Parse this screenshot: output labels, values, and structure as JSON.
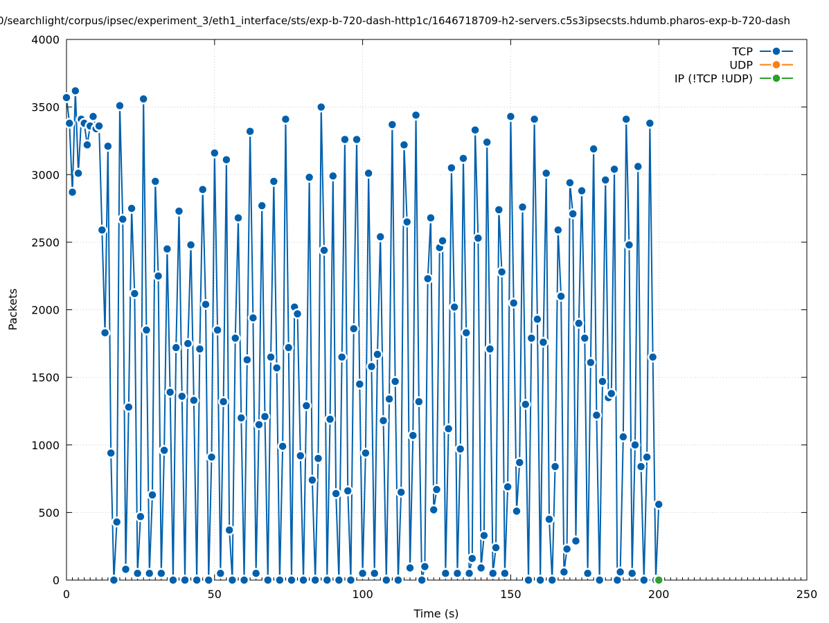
{
  "chart_data": {
    "type": "line",
    "title": "0/searchlight/corpus/ipsec/experiment_3/eth1_interface/sts/exp-b-720-dash-http1c/1646718709-h2-servers.c5s3ipsecsts.hdumb.pharos-exp-b-720-dash",
    "xlabel": "Time (s)",
    "ylabel": "Packets",
    "xlim": [
      0,
      250
    ],
    "ylim": [
      0,
      4000
    ],
    "xticks": [
      "0",
      "50",
      "100",
      "150",
      "200",
      "250"
    ],
    "yticks": [
      "0",
      "500",
      "1000",
      "1500",
      "2000",
      "2500",
      "3000",
      "3500",
      "4000"
    ],
    "grid": true,
    "legend_position": "top-right",
    "series": [
      {
        "name": "TCP",
        "color": "#0060ad",
        "points": [
          [
            0,
            3570
          ],
          [
            1,
            3380
          ],
          [
            2,
            2870
          ],
          [
            3,
            3620
          ],
          [
            4,
            3010
          ],
          [
            5,
            3410
          ],
          [
            6,
            3380
          ],
          [
            7,
            3220
          ],
          [
            8,
            3360
          ],
          [
            9,
            3430
          ],
          [
            10,
            3340
          ],
          [
            11,
            3360
          ],
          [
            12,
            2590
          ],
          [
            13,
            1830
          ],
          [
            14,
            3210
          ],
          [
            15,
            940
          ],
          [
            16,
            0
          ],
          [
            17,
            430
          ],
          [
            18,
            3510
          ],
          [
            19,
            2670
          ],
          [
            20,
            80
          ],
          [
            21,
            1280
          ],
          [
            22,
            2750
          ],
          [
            23,
            2120
          ],
          [
            24,
            50
          ],
          [
            25,
            470
          ],
          [
            26,
            3560
          ],
          [
            27,
            1850
          ],
          [
            28,
            50
          ],
          [
            29,
            630
          ],
          [
            30,
            2950
          ],
          [
            31,
            2250
          ],
          [
            32,
            50
          ],
          [
            33,
            960
          ],
          [
            34,
            2450
          ],
          [
            35,
            1390
          ],
          [
            36,
            0
          ],
          [
            37,
            1720
          ],
          [
            38,
            2730
          ],
          [
            39,
            1360
          ],
          [
            40,
            0
          ],
          [
            41,
            1750
          ],
          [
            42,
            2480
          ],
          [
            43,
            1330
          ],
          [
            44,
            0
          ],
          [
            45,
            1710
          ],
          [
            46,
            2890
          ],
          [
            47,
            2040
          ],
          [
            48,
            0
          ],
          [
            49,
            910
          ],
          [
            50,
            3160
          ],
          [
            51,
            1850
          ],
          [
            52,
            50
          ],
          [
            53,
            1320
          ],
          [
            54,
            3110
          ],
          [
            55,
            370
          ],
          [
            56,
            0
          ],
          [
            57,
            1790
          ],
          [
            58,
            2680
          ],
          [
            59,
            1200
          ],
          [
            60,
            0
          ],
          [
            61,
            1630
          ],
          [
            62,
            3320
          ],
          [
            63,
            1940
          ],
          [
            64,
            50
          ],
          [
            65,
            1150
          ],
          [
            66,
            2770
          ],
          [
            67,
            1210
          ],
          [
            68,
            0
          ],
          [
            69,
            1650
          ],
          [
            70,
            2950
          ],
          [
            71,
            1570
          ],
          [
            72,
            0
          ],
          [
            73,
            990
          ],
          [
            74,
            3410
          ],
          [
            75,
            1720
          ],
          [
            76,
            0
          ],
          [
            77,
            2020
          ],
          [
            78,
            1970
          ],
          [
            79,
            920
          ],
          [
            80,
            0
          ],
          [
            81,
            1290
          ],
          [
            82,
            2980
          ],
          [
            83,
            740
          ],
          [
            84,
            0
          ],
          [
            85,
            900
          ],
          [
            86,
            3500
          ],
          [
            87,
            2440
          ],
          [
            88,
            0
          ],
          [
            89,
            1190
          ],
          [
            90,
            2990
          ],
          [
            91,
            640
          ],
          [
            92,
            0
          ],
          [
            93,
            1650
          ],
          [
            94,
            3260
          ],
          [
            95,
            660
          ],
          [
            96,
            0
          ],
          [
            97,
            1860
          ],
          [
            98,
            3260
          ],
          [
            99,
            1450
          ],
          [
            100,
            50
          ],
          [
            101,
            940
          ],
          [
            102,
            3010
          ],
          [
            103,
            1580
          ],
          [
            104,
            50
          ],
          [
            105,
            1670
          ],
          [
            106,
            2540
          ],
          [
            107,
            1180
          ],
          [
            108,
            0
          ],
          [
            109,
            1340
          ],
          [
            110,
            3370
          ],
          [
            111,
            1470
          ],
          [
            112,
            0
          ],
          [
            113,
            650
          ],
          [
            114,
            3220
          ],
          [
            115,
            2650
          ],
          [
            116,
            90
          ],
          [
            117,
            1070
          ],
          [
            118,
            3440
          ],
          [
            119,
            1320
          ],
          [
            120,
            0
          ],
          [
            121,
            100
          ],
          [
            122,
            2230
          ],
          [
            123,
            2680
          ],
          [
            124,
            520
          ],
          [
            125,
            670
          ],
          [
            126,
            2460
          ],
          [
            127,
            2510
          ],
          [
            128,
            50
          ],
          [
            129,
            1120
          ],
          [
            130,
            3050
          ],
          [
            131,
            2020
          ],
          [
            132,
            50
          ],
          [
            133,
            970
          ],
          [
            134,
            3120
          ],
          [
            135,
            1830
          ],
          [
            136,
            50
          ],
          [
            137,
            160
          ],
          [
            138,
            3330
          ],
          [
            139,
            2530
          ],
          [
            140,
            90
          ],
          [
            141,
            330
          ],
          [
            142,
            3240
          ],
          [
            143,
            1710
          ],
          [
            144,
            50
          ],
          [
            145,
            240
          ],
          [
            146,
            2740
          ],
          [
            147,
            2280
          ],
          [
            148,
            50
          ],
          [
            149,
            690
          ],
          [
            150,
            3430
          ],
          [
            151,
            2050
          ],
          [
            152,
            510
          ],
          [
            153,
            870
          ],
          [
            154,
            2760
          ],
          [
            155,
            1300
          ],
          [
            156,
            0
          ],
          [
            157,
            1790
          ],
          [
            158,
            3410
          ],
          [
            159,
            1930
          ],
          [
            160,
            0
          ],
          [
            161,
            1760
          ],
          [
            162,
            3010
          ],
          [
            163,
            450
          ],
          [
            164,
            0
          ],
          [
            165,
            840
          ],
          [
            166,
            2590
          ],
          [
            167,
            2100
          ],
          [
            168,
            60
          ],
          [
            169,
            230
          ],
          [
            170,
            2940
          ],
          [
            171,
            2710
          ],
          [
            172,
            290
          ],
          [
            173,
            1900
          ],
          [
            174,
            2880
          ],
          [
            175,
            1790
          ],
          [
            176,
            50
          ],
          [
            177,
            1610
          ],
          [
            178,
            3190
          ],
          [
            179,
            1220
          ],
          [
            180,
            0
          ],
          [
            181,
            1470
          ],
          [
            182,
            2960
          ],
          [
            183,
            1350
          ],
          [
            184,
            1380
          ],
          [
            185,
            3040
          ],
          [
            186,
            0
          ],
          [
            187,
            60
          ],
          [
            188,
            1060
          ],
          [
            189,
            3410
          ],
          [
            190,
            2480
          ],
          [
            191,
            50
          ],
          [
            192,
            1000
          ],
          [
            193,
            3060
          ],
          [
            194,
            840
          ],
          [
            195,
            0
          ],
          [
            196,
            910
          ],
          [
            197,
            3380
          ],
          [
            198,
            1650
          ],
          [
            199,
            0
          ],
          [
            200,
            560
          ]
        ]
      },
      {
        "name": "UDP",
        "color": "#ff7f0e",
        "points": []
      },
      {
        "name": "IP (!TCP  !UDP)",
        "color": "#2ca02c",
        "points": [
          [
            200,
            0
          ]
        ]
      }
    ]
  }
}
